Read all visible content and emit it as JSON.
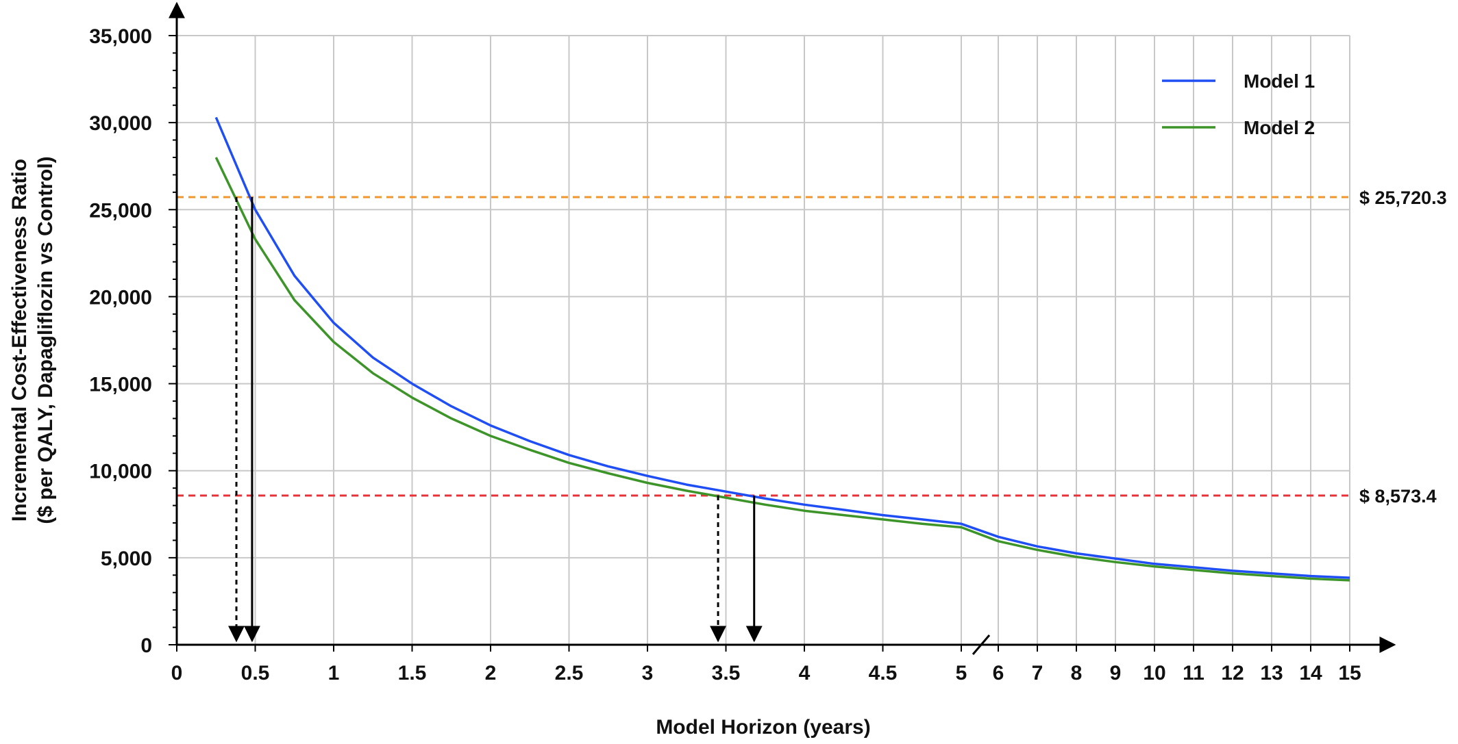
{
  "chart_data": {
    "type": "line",
    "title": "",
    "xlabel": "Model Horizon (years)",
    "ylabel": [
      "Incremental  Cost-Effectiveness Ratio",
      "($ per QALY, Dapagliflozin vs Control)"
    ],
    "ylim": [
      0,
      35000
    ],
    "y_ticks": [
      0,
      5000,
      10000,
      15000,
      20000,
      25000,
      30000,
      35000
    ],
    "y_tick_labels": [
      "0",
      "5,000",
      "10,000",
      "15,000",
      "20,000",
      "25,000",
      "30,000",
      "35,000"
    ],
    "x_axis_note": "broken axis: 0.5-year steps up to 5, then 1-year steps from 5 to 15",
    "x_ticks": [
      0,
      0.5,
      1,
      1.5,
      2,
      2.5,
      3,
      3.5,
      4,
      4.5,
      5,
      6,
      7,
      8,
      9,
      10,
      11,
      12,
      13,
      14,
      15
    ],
    "x_tick_labels": [
      "0",
      "0.5",
      "1",
      "1.5",
      "2",
      "2.5",
      "3",
      "3.5",
      "4",
      "4.5",
      "5",
      "6",
      "7",
      "8",
      "9",
      "10",
      "11",
      "12",
      "13",
      "14",
      "15"
    ],
    "grid": true,
    "legend_position": "top-right",
    "series": [
      {
        "name": "Model 1",
        "color": "#1f4ef5",
        "x": [
          0.25,
          0.5,
          0.75,
          1,
          1.25,
          1.5,
          1.75,
          2,
          2.25,
          2.5,
          2.75,
          3,
          3.25,
          3.5,
          3.75,
          4,
          4.25,
          4.5,
          4.75,
          5,
          6,
          7,
          8,
          9,
          10,
          11,
          12,
          13,
          14,
          15
        ],
        "y": [
          30300,
          25000,
          21200,
          18500,
          16500,
          15000,
          13700,
          12600,
          11700,
          10900,
          10250,
          9700,
          9200,
          8800,
          8400,
          8050,
          7750,
          7450,
          7200,
          6950,
          6200,
          5650,
          5250,
          4950,
          4650,
          4450,
          4250,
          4100,
          3950,
          3850
        ]
      },
      {
        "name": "Model 2",
        "color": "#3d9428",
        "x": [
          0.25,
          0.5,
          0.75,
          1,
          1.25,
          1.5,
          1.75,
          2,
          2.25,
          2.5,
          2.75,
          3,
          3.25,
          3.5,
          3.75,
          4,
          4.25,
          4.5,
          4.75,
          5,
          6,
          7,
          8,
          9,
          10,
          11,
          12,
          13,
          14,
          15
        ],
        "y": [
          28000,
          23300,
          19800,
          17400,
          15600,
          14200,
          13000,
          12000,
          11200,
          10450,
          9850,
          9300,
          8850,
          8450,
          8050,
          7700,
          7450,
          7200,
          6950,
          6750,
          5950,
          5450,
          5050,
          4750,
          4500,
          4300,
          4100,
          3950,
          3800,
          3700
        ]
      }
    ],
    "reference_lines": [
      {
        "y": 25720.3,
        "label": "$ 25,720.3",
        "color": "#f0962e"
      },
      {
        "y": 8573.4,
        "label": "$ 8,573.4",
        "color": "#e8323a"
      }
    ],
    "crossing_arrows": [
      {
        "x": 0.38,
        "y": 25720.3,
        "style": "dashed"
      },
      {
        "x": 0.48,
        "y": 25720.3,
        "style": "solid"
      },
      {
        "x": 3.45,
        "y": 8573.4,
        "style": "dashed"
      },
      {
        "x": 3.68,
        "y": 8573.4,
        "style": "solid"
      }
    ]
  }
}
